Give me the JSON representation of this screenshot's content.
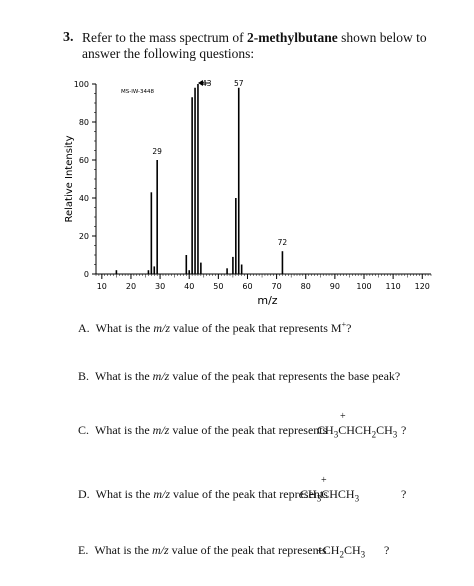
{
  "question": {
    "number": "3.",
    "line1_pre": "Refer to the mass spectrum of ",
    "line1_bold": "2-methylbutane",
    "line1_post": " shown below to",
    "line2": "answer the following questions:"
  },
  "chart_data": {
    "type": "bar",
    "code": "MS-IW-3448",
    "xlabel": "m/z",
    "ylabel": "Relative Intensity",
    "xlim": [
      8,
      123
    ],
    "ylim": [
      0,
      100
    ],
    "xticks": [
      10,
      20,
      30,
      40,
      50,
      60,
      70,
      80,
      90,
      100,
      110,
      120
    ],
    "yticks": [
      0,
      20,
      40,
      60,
      80,
      100
    ],
    "labeled_peaks": [
      {
        "mz": 29,
        "label": "29"
      },
      {
        "mz": 43,
        "label": "43"
      },
      {
        "mz": 57,
        "label": "57"
      },
      {
        "mz": 72,
        "label": "72"
      }
    ],
    "peaks": [
      {
        "mz": 15,
        "intensity": 2
      },
      {
        "mz": 26,
        "intensity": 2
      },
      {
        "mz": 27,
        "intensity": 43
      },
      {
        "mz": 28,
        "intensity": 4
      },
      {
        "mz": 29,
        "intensity": 60
      },
      {
        "mz": 39,
        "intensity": 10
      },
      {
        "mz": 40,
        "intensity": 2
      },
      {
        "mz": 41,
        "intensity": 93
      },
      {
        "mz": 42,
        "intensity": 98
      },
      {
        "mz": 43,
        "intensity": 100
      },
      {
        "mz": 44,
        "intensity": 6
      },
      {
        "mz": 53,
        "intensity": 3
      },
      {
        "mz": 55,
        "intensity": 9
      },
      {
        "mz": 56,
        "intensity": 40
      },
      {
        "mz": 57,
        "intensity": 98
      },
      {
        "mz": 58,
        "intensity": 5
      },
      {
        "mz": 72,
        "intensity": 12
      }
    ]
  },
  "parts": {
    "A": {
      "letter": "A.",
      "pre": "What is the ",
      "mz": "m/z",
      "post": " value of the peak that represents M",
      "sup": "+",
      "end": "?"
    },
    "B": {
      "letter": "B.",
      "pre": "What is the ",
      "mz": "m/z",
      "post": " value of the peak that represents the base peak?"
    },
    "C": {
      "letter": "C.",
      "pre": "What is the ",
      "mz": "m/z",
      "post": " value of the peak that represents",
      "plus": "+",
      "formula": "CH3CHCH2CH3",
      "q": "?"
    },
    "D": {
      "letter": "D.",
      "pre": "What is the ",
      "mz": "m/z",
      "post": " value of the peak that represents",
      "plus": "+",
      "formula": "CH3CHCH3",
      "q": "?"
    },
    "E": {
      "letter": "E.",
      "pre": "What is the ",
      "mz": "m/z",
      "post": " value of the peak that represents",
      "formula": "+CH2CH3",
      "q": "?"
    }
  }
}
